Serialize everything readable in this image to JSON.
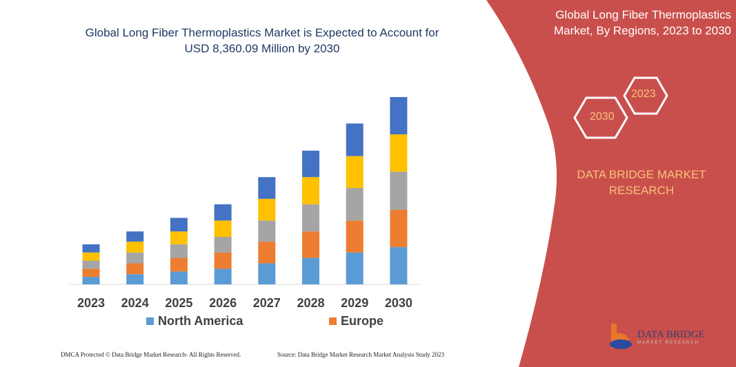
{
  "chart_data": {
    "type": "bar",
    "stacked": true,
    "title": "Global Long Fiber Thermoplastics Market is Expected to Account for USD 8,360.09 Million by 2030",
    "xlabel": "",
    "ylabel": "",
    "categories": [
      "2023",
      "2024",
      "2025",
      "2026",
      "2027",
      "2028",
      "2029",
      "2030"
    ],
    "ylim": [
      0,
      280
    ],
    "grid": false,
    "legend_position": "bottom",
    "series": [
      {
        "name": "North America",
        "color": "#5B9BD5",
        "values": [
          11,
          15,
          19,
          23,
          31,
          39,
          47,
          55
        ]
      },
      {
        "name": "Europe",
        "color": "#ED7D31",
        "values": [
          12,
          16,
          20,
          24,
          32,
          39,
          47,
          55
        ]
      },
      {
        "color": "#A5A5A5",
        "values": [
          12,
          16,
          20,
          23,
          31,
          40,
          48,
          56
        ]
      },
      {
        "color": "#FFC000",
        "values": [
          12,
          16,
          19,
          24,
          32,
          40,
          47,
          55
        ]
      },
      {
        "color": "#4472C4",
        "values": [
          12,
          15,
          20,
          24,
          32,
          39,
          48,
          55
        ]
      }
    ]
  },
  "panel": {
    "title": "Global Long Fiber Thermoplastics Market, By Regions, 2023 to 2030",
    "hex_back": "2023",
    "hex_front": "2030",
    "brand": "DATA BRIDGE MARKET RESEARCH",
    "logo_text": "DATA BRIDGE",
    "logo_sub": "MARKET RESEARCH",
    "color": "#C94F4C"
  },
  "footer": {
    "left": "DMCA Protected © Data Bridge Market Research- All Rights Reserved.",
    "right": "Source: Data Bridge Market Research  Market Analysis Study 2023"
  }
}
